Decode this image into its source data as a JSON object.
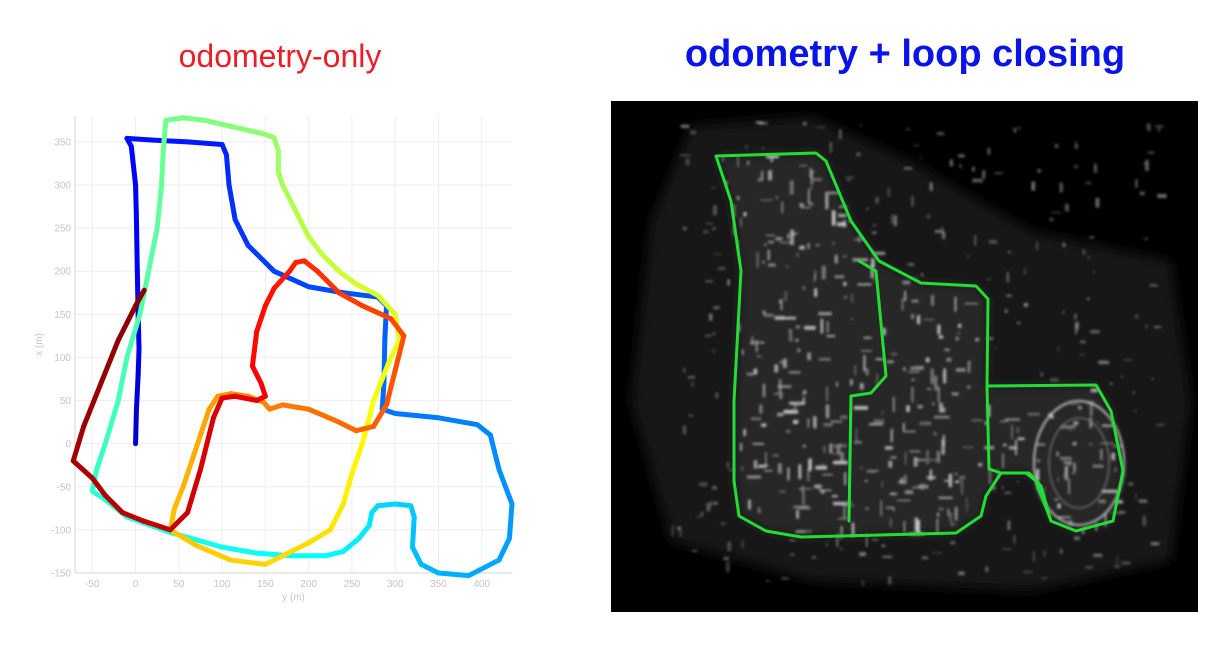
{
  "colors": {
    "left_title": "#ee1c25",
    "right_title": "#0a14e8",
    "trajectory_overlay": "#22dd33",
    "map_background": "#000000",
    "axis_text": "#c4c4c4",
    "grid": "#eeeeee"
  },
  "titles": {
    "left": "odometry-only",
    "right": "odometry + loop closing"
  },
  "map_image": {
    "icon": "point-cloud-map-icon",
    "trajectory_color": "#22dd33"
  },
  "chart_data": {
    "type": "line",
    "title": "odometry-only",
    "xlabel": "y (m)",
    "ylabel": "x (m)",
    "xlim": [
      -70,
      435
    ],
    "ylim": [
      -150,
      380
    ],
    "xticks": [
      -50,
      0,
      50,
      100,
      150,
      200,
      250,
      300,
      350,
      400
    ],
    "yticks": [
      -150,
      -100,
      -50,
      0,
      50,
      100,
      150,
      200,
      250,
      300,
      350
    ],
    "x_tick_labels": [
      "-50",
      "0",
      "50",
      "100",
      "150",
      "200",
      "250",
      "300",
      "350",
      "400"
    ],
    "y_tick_labels": [
      "-150",
      "-100",
      "-50",
      "0",
      "50",
      "100",
      "150",
      "200",
      "250",
      "300",
      "350"
    ],
    "grid": true,
    "colormap": "jet",
    "series": [
      {
        "points": [
          [
            0,
            0
          ],
          [
            1,
            40
          ],
          [
            3,
            80
          ],
          [
            4,
            110
          ],
          [
            3,
            150
          ],
          [
            2,
            200
          ],
          [
            1,
            260
          ],
          [
            0,
            300
          ],
          [
            -5,
            345
          ],
          [
            -10,
            354
          ],
          [
            20,
            352
          ],
          [
            60,
            350
          ],
          [
            100,
            347
          ],
          [
            105,
            335
          ],
          [
            108,
            300
          ],
          [
            115,
            260
          ],
          [
            130,
            230
          ],
          [
            160,
            200
          ],
          [
            200,
            182
          ],
          [
            240,
            175
          ],
          [
            280,
            170
          ],
          [
            290,
            160
          ],
          [
            288,
            120
          ],
          [
            287,
            70
          ],
          [
            285,
            40
          ],
          [
            300,
            35
          ],
          [
            350,
            30
          ],
          [
            395,
            22
          ],
          [
            410,
            10
          ],
          [
            420,
            -30
          ],
          [
            435,
            -70
          ],
          [
            432,
            -110
          ],
          [
            420,
            -135
          ],
          [
            385,
            -153
          ],
          [
            350,
            -150
          ],
          [
            330,
            -140
          ],
          [
            320,
            -120
          ],
          [
            322,
            -85
          ],
          [
            318,
            -72
          ],
          [
            300,
            -70
          ],
          [
            280,
            -72
          ],
          [
            273,
            -80
          ],
          [
            270,
            -95
          ],
          [
            258,
            -110
          ],
          [
            240,
            -125
          ],
          [
            220,
            -130
          ],
          [
            180,
            -130
          ],
          [
            140,
            -127
          ],
          [
            100,
            -120
          ],
          [
            65,
            -110
          ],
          [
            40,
            -103
          ],
          [
            -10,
            -85
          ],
          [
            -35,
            -65
          ],
          [
            -50,
            -55
          ],
          [
            -45,
            -30
          ],
          [
            -35,
            0
          ],
          [
            -20,
            50
          ],
          [
            -10,
            100
          ],
          [
            5,
            150
          ],
          [
            15,
            200
          ],
          [
            25,
            250
          ],
          [
            30,
            300
          ],
          [
            32,
            340
          ],
          [
            35,
            375
          ],
          [
            55,
            378
          ],
          [
            80,
            375
          ],
          [
            110,
            368
          ],
          [
            145,
            360
          ],
          [
            160,
            355
          ],
          [
            165,
            340
          ],
          [
            165,
            315
          ],
          [
            170,
            300
          ],
          [
            180,
            280
          ],
          [
            190,
            260
          ],
          [
            200,
            240
          ],
          [
            215,
            220
          ],
          [
            235,
            200
          ],
          [
            255,
            185
          ],
          [
            280,
            172
          ],
          [
            300,
            150
          ],
          [
            305,
            120
          ],
          [
            295,
            100
          ],
          [
            285,
            75
          ],
          [
            275,
            50
          ],
          [
            270,
            30
          ],
          [
            262,
            0
          ],
          [
            250,
            -35
          ],
          [
            240,
            -70
          ],
          [
            225,
            -100
          ],
          [
            200,
            -115
          ],
          [
            150,
            -140
          ],
          [
            110,
            -135
          ],
          [
            70,
            -118
          ],
          [
            40,
            -100
          ],
          [
            45,
            -75
          ],
          [
            55,
            -50
          ],
          [
            65,
            -20
          ],
          [
            75,
            10
          ],
          [
            85,
            40
          ],
          [
            95,
            55
          ],
          [
            110,
            58
          ],
          [
            130,
            55
          ],
          [
            148,
            48
          ],
          [
            155,
            40
          ],
          [
            170,
            45
          ],
          [
            200,
            40
          ],
          [
            235,
            25
          ],
          [
            255,
            15
          ],
          [
            275,
            20
          ],
          [
            290,
            45
          ],
          [
            300,
            85
          ],
          [
            310,
            125
          ],
          [
            295,
            145
          ],
          [
            262,
            160
          ],
          [
            235,
            175
          ],
          [
            210,
            200
          ],
          [
            195,
            212
          ],
          [
            185,
            210
          ],
          [
            178,
            200
          ],
          [
            160,
            180
          ],
          [
            150,
            160
          ],
          [
            140,
            130
          ],
          [
            135,
            90
          ],
          [
            145,
            70
          ],
          [
            150,
            55
          ],
          [
            140,
            50
          ],
          [
            115,
            55
          ],
          [
            100,
            53
          ],
          [
            90,
            30
          ],
          [
            75,
            -30
          ],
          [
            60,
            -80
          ],
          [
            40,
            -100
          ],
          [
            10,
            -90
          ],
          [
            -15,
            -80
          ],
          [
            -35,
            -60
          ],
          [
            -50,
            -40
          ],
          [
            -72,
            -20
          ],
          [
            -60,
            20
          ],
          [
            -40,
            70
          ],
          [
            -20,
            120
          ],
          [
            0,
            160
          ],
          [
            10,
            178
          ]
        ]
      }
    ]
  }
}
